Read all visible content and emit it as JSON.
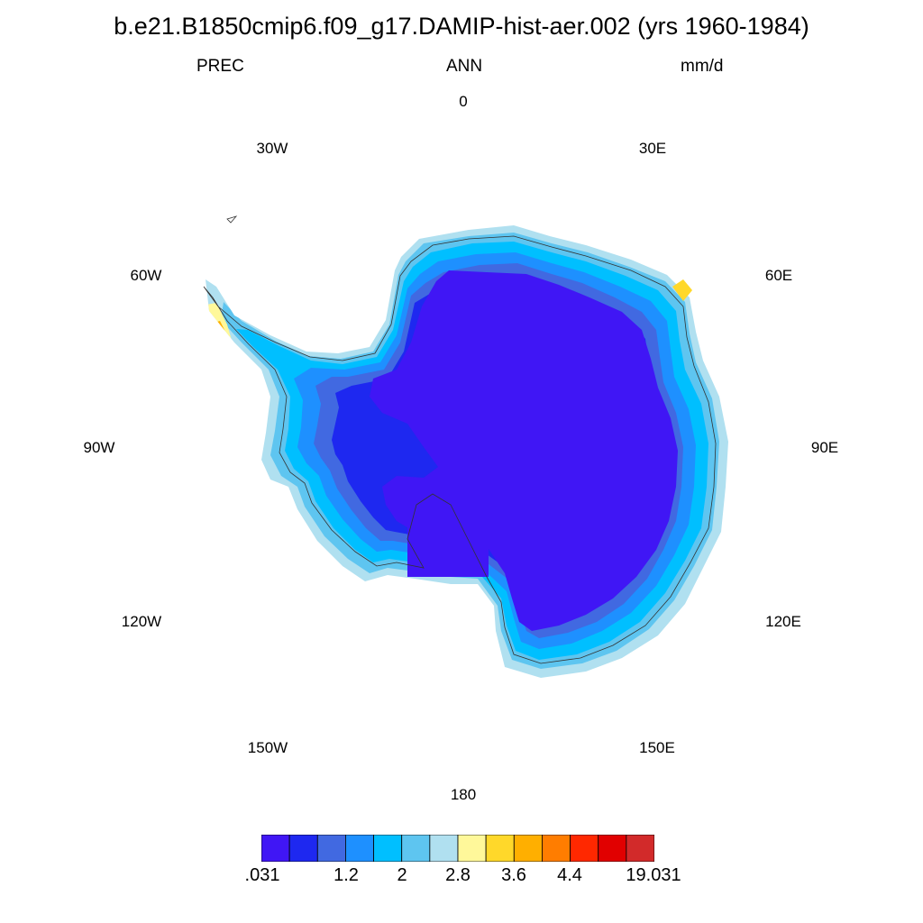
{
  "title": "b.e21.B1850cmip6.f09_g17.DAMIP-hist-aer.002 (yrs 1960-1984)",
  "subtitle": {
    "left": "PREC",
    "center": "ANN",
    "right": "mm/d"
  },
  "longitude_labels": [
    "0",
    "30E",
    "60E",
    "90E",
    "120E",
    "150E",
    "180",
    "150W",
    "120W",
    "90W",
    "60W",
    "30W"
  ],
  "colorbar": {
    "colors": [
      "#4016f5",
      "#1e28f0",
      "#4169e1",
      "#1e90ff",
      "#00bfff",
      "#5ec5f0",
      "#b0e0f0",
      "#fff89a",
      "#ffd82a",
      "#ffaf00",
      "#ff7d00",
      "#ff2800",
      "#e10000",
      "#d22a2a"
    ],
    "labels": [
      ".031",
      "1.2",
      "2",
      "2.8",
      "3.6",
      "4.4",
      "19.031"
    ]
  },
  "map_colors": {
    "interior": "#4016f5",
    "inner_ring": "#1e28f0",
    "ring2": "#4169e1",
    "ring3": "#1e90ff",
    "coast": "#00bfff",
    "outer": "#5ec5f0",
    "edge": "#b0e0f0",
    "pale_yellow": "#fff89a",
    "yellow": "#ffd82a",
    "orange": "#ffaf00"
  }
}
